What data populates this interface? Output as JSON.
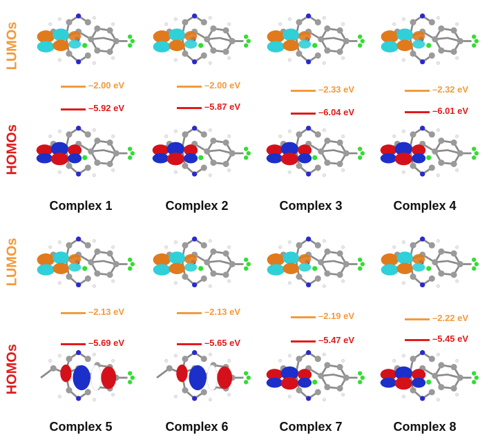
{
  "labels": {
    "lumo": "LUMOs",
    "homo": "HOMOs"
  },
  "colors": {
    "lumo": "#f39a3c",
    "homo": "#e01b1b",
    "orbital_orange": "#e07a1c",
    "orbital_cyan": "#2fd0d8",
    "orbital_red": "#d4111a",
    "orbital_blue": "#1c2fc9"
  },
  "complexes": [
    {
      "name": "Complex 1",
      "lumo": "–2.00 eV",
      "homo": "–5.92 eV"
    },
    {
      "name": "Complex 2",
      "lumo": "–2.00 eV",
      "homo": "–5.87 eV"
    },
    {
      "name": "Complex 3",
      "lumo": "–2.33 eV",
      "homo": "–6.04 eV"
    },
    {
      "name": "Complex 4",
      "lumo": "–2.32 eV",
      "homo": "–6.01 eV"
    },
    {
      "name": "Complex 5",
      "lumo": "–2.13 eV",
      "homo": "–5.69 eV"
    },
    {
      "name": "Complex 6",
      "lumo": "–2.13 eV",
      "homo": "–5.65 eV"
    },
    {
      "name": "Complex 7",
      "lumo": "–2.19 eV",
      "homo": "–5.47 eV"
    },
    {
      "name": "Complex 8",
      "lumo": "–2.22 eV",
      "homo": "–5.45 eV"
    }
  ]
}
